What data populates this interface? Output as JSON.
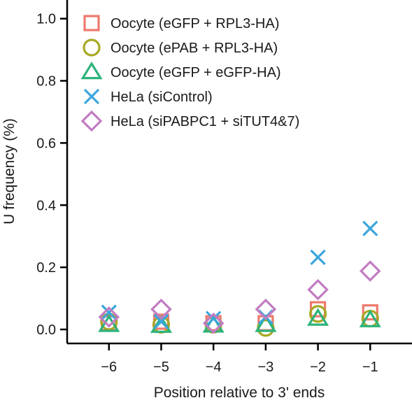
{
  "chart_data": {
    "type": "scatter",
    "title": "",
    "xlabel": "Position relative to 3' ends",
    "ylabel": "U frequency (%)",
    "x": [
      -6,
      -5,
      -4,
      -3,
      -2,
      -1
    ],
    "x_tick_labels": [
      "−6",
      "−5",
      "−4",
      "−3",
      "−2",
      "−1"
    ],
    "y_ticks": [
      0.0,
      0.2,
      0.4,
      0.6,
      0.8,
      1.0
    ],
    "y_tick_labels": [
      "0.0",
      "0.2",
      "0.4",
      "0.6",
      "0.8",
      "1.0"
    ],
    "xlim": [
      -6.8,
      -0.2
    ],
    "ylim": [
      -0.045,
      1.06
    ],
    "grid": false,
    "legend_position": "top-left",
    "series": [
      {
        "name": "Oocyte (eGFP + RPL3-HA)",
        "marker": "square",
        "color": "#ee7a6d",
        "values": [
          0.02,
          0.025,
          0.02,
          0.02,
          0.065,
          0.055
        ]
      },
      {
        "name": "Oocyte (ePAB + RPL3-HA)",
        "marker": "circle",
        "color": "#a8a826",
        "values": [
          0.025,
          0.015,
          0.015,
          0.005,
          0.05,
          0.035
        ]
      },
      {
        "name": "Oocyte (eGFP + eGFP-HA)",
        "marker": "triangle",
        "color": "#2db37a",
        "values": [
          0.015,
          0.012,
          0.013,
          0.015,
          0.035,
          0.03
        ]
      },
      {
        "name": "HeLa (siControl)",
        "marker": "x",
        "color": "#3aa6dc",
        "values": [
          0.055,
          0.025,
          0.035,
          0.04,
          0.232,
          0.325
        ]
      },
      {
        "name": "HeLa (siPABPC1 + siTUT4&7)",
        "marker": "diamond",
        "color": "#c27cc2",
        "values": [
          0.04,
          0.065,
          0.02,
          0.065,
          0.128,
          0.188
        ]
      }
    ]
  }
}
